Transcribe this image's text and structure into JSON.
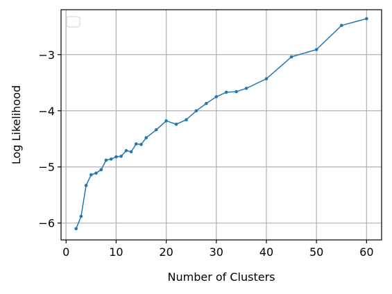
{
  "chart_data": {
    "type": "line",
    "title": "",
    "xlabel": "Number of Clusters",
    "ylabel": "Log Likelihood",
    "xlim": [
      -1,
      63
    ],
    "ylim": [
      -6.3,
      -2.2
    ],
    "x_ticks": [
      0,
      10,
      20,
      30,
      40,
      50,
      60
    ],
    "y_ticks": [
      -6,
      -5,
      -4,
      -3
    ],
    "y_tick_labels": [
      "−6",
      "−5",
      "−4",
      "−3"
    ],
    "grid": true,
    "legend": {
      "placement": "top-left",
      "entries": []
    },
    "series": [
      {
        "color": "#1f77b4",
        "marker": "circle",
        "x": [
          2,
          3,
          4,
          5,
          6,
          7,
          8,
          9,
          10,
          11,
          12,
          13,
          14,
          15,
          16,
          18,
          20,
          22,
          24,
          26,
          28,
          30,
          32,
          34,
          36,
          40,
          45,
          50,
          55,
          60
        ],
        "y": [
          -6.1,
          -5.88,
          -5.33,
          -5.14,
          -5.11,
          -5.05,
          -4.88,
          -4.86,
          -4.82,
          -4.81,
          -4.71,
          -4.73,
          -4.59,
          -4.6,
          -4.48,
          -4.34,
          -4.18,
          -4.24,
          -4.16,
          -4.0,
          -3.87,
          -3.75,
          -3.67,
          -3.66,
          -3.6,
          -3.43,
          -3.04,
          -2.91,
          -2.48,
          -2.36
        ]
      }
    ]
  }
}
